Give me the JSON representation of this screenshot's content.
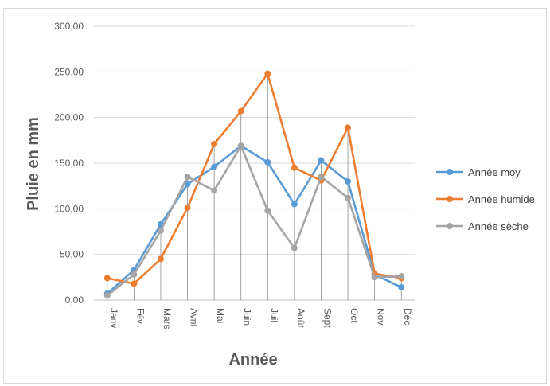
{
  "chart_data": {
    "type": "line",
    "xlabel": "Année",
    "ylabel": "Pluie en mm",
    "ylim": [
      0,
      300
    ],
    "y_ticks": [
      "0,00",
      "50,00",
      "100,00",
      "150,00",
      "200,00",
      "250,00",
      "300,00"
    ],
    "categories": [
      "Janv",
      "Fév",
      "Mars",
      "Avril",
      "Mai",
      "Juin",
      "Juil",
      "Août",
      "Sept",
      "Oct",
      "Nov",
      "Déc"
    ],
    "grid": "horizontal and vertical",
    "legend_position": "right",
    "series": [
      {
        "name": "Année moy",
        "color": "#5b9bd5",
        "values": [
          7,
          33,
          83,
          127,
          146,
          169,
          151,
          105,
          153,
          130,
          28,
          14
        ]
      },
      {
        "name": "Année humide",
        "color": "#ed7d31",
        "values": [
          24,
          18,
          45,
          101,
          171,
          207,
          248,
          145,
          131,
          189,
          29,
          24
        ]
      },
      {
        "name": "Année sèche",
        "color": "#a5a5a5",
        "values": [
          5,
          28,
          76,
          135,
          120,
          169,
          98,
          57,
          135,
          112,
          25,
          26
        ]
      }
    ]
  }
}
